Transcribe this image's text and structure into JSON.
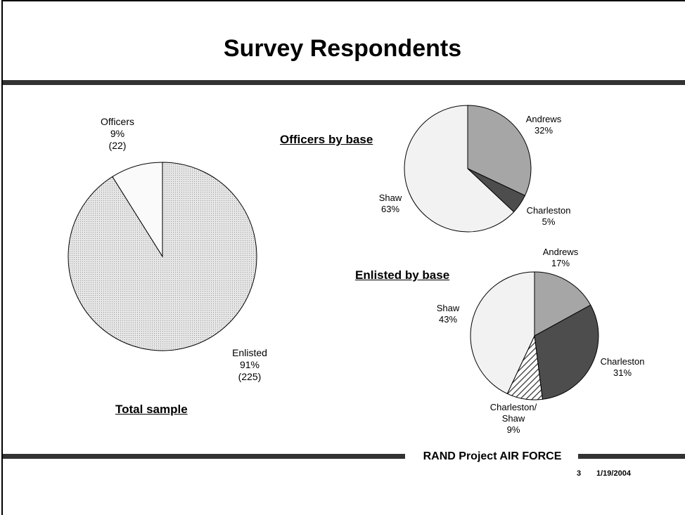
{
  "slide": {
    "title": "Survey Respondents",
    "footer_label": "RAND Project AIR FORCE",
    "page_number": "3",
    "date": "1/19/2004"
  },
  "chart_data": [
    {
      "type": "pie",
      "title": "Total sample",
      "slices": [
        {
          "name": "Enlisted",
          "percent_label": "91%",
          "count_label": "(225)",
          "value": 225,
          "color": "#d9d9d9"
        },
        {
          "name": "Officers",
          "percent_label": "9%",
          "count_label": "(22)",
          "value": 22,
          "color": "#fafafa"
        }
      ]
    },
    {
      "type": "pie",
      "title": "Officers by base",
      "slices": [
        {
          "name": "Andrews",
          "percent_label": "32%",
          "value": 32,
          "color": "#a6a6a6"
        },
        {
          "name": "Charleston",
          "percent_label": "5%",
          "value": 5,
          "color": "#4d4d4d"
        },
        {
          "name": "Shaw",
          "percent_label": "63%",
          "value": 63,
          "color": "#f2f2f2"
        }
      ]
    },
    {
      "type": "pie",
      "title": "Enlisted by base",
      "slices": [
        {
          "name": "Andrews",
          "percent_label": "17%",
          "value": 17,
          "color": "#a6a6a6"
        },
        {
          "name": "Charleston",
          "percent_label": "31%",
          "value": 31,
          "color": "#4d4d4d"
        },
        {
          "name": "Charleston/ Shaw",
          "name_lines": [
            "Charleston/",
            "Shaw"
          ],
          "percent_label": "9%",
          "value": 9,
          "color": "#ffffff",
          "pattern": "diagonal-hatch"
        },
        {
          "name": "Shaw",
          "percent_label": "43%",
          "value": 43,
          "color": "#f2f2f2"
        }
      ]
    }
  ]
}
